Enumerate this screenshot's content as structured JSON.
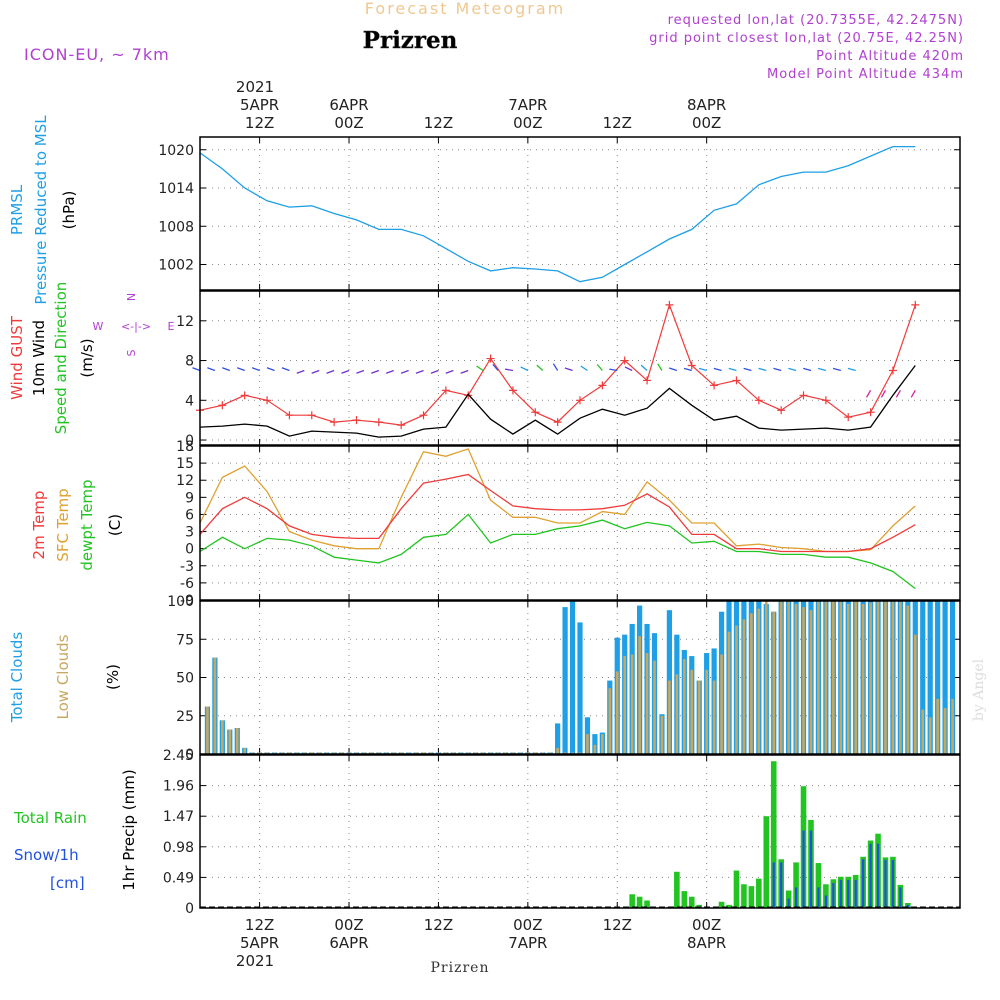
{
  "header": {
    "title": "Forecast Meteogram",
    "location": "Prizren",
    "model": "ICON-EU, ~ 7km",
    "requested": "requested lon,lat (20.7355E, 42.2475N)",
    "gridpoint": "grid point closest lon,lat (20.75E, 42.25N)",
    "point_alt": "Point Altitude 420m",
    "model_alt": "Model Point Altitude 434m",
    "footer": "Prizren",
    "watermark": "by Angel",
    "year": "2021"
  },
  "time_axis": {
    "ticks": [
      {
        "hour": "12Z",
        "day": "5APR"
      },
      {
        "hour": "00Z",
        "day": "6APR"
      },
      {
        "hour": "12Z",
        "day": ""
      },
      {
        "hour": "00Z",
        "day": "7APR"
      },
      {
        "hour": "12Z",
        "day": ""
      },
      {
        "hour": "00Z",
        "day": "8APR"
      }
    ]
  },
  "colors": {
    "pressure": "#1e9fe6",
    "gust": "#ef3b3b",
    "wind": "#000000",
    "winddir": "#22c422",
    "temp2m": "#ef3b3b",
    "sfc": "#e0a030",
    "dewpt": "#22c422",
    "total_clouds": "#1e9fe6",
    "low_clouds": "#c8a860",
    "rain": "#22c422",
    "snow": "#2050e0",
    "compass": "#b040d0"
  },
  "chart_data": [
    {
      "type": "line",
      "panel": "pressure",
      "ylabel_lines": [
        "PRMSL",
        "Pressure Reduced to MSL"
      ],
      "unit": "(hPa)",
      "ylim": [
        998,
        1022
      ],
      "yticks": [
        1002,
        1008,
        1014,
        1020
      ],
      "x_hours": [
        0,
        3,
        6,
        9,
        12,
        15,
        18,
        21,
        24,
        27,
        30,
        33,
        36,
        39,
        42,
        45,
        48,
        51,
        54,
        57,
        60,
        63,
        66,
        69,
        72,
        75,
        78,
        81,
        84,
        87,
        90,
        93,
        96
      ],
      "series": [
        {
          "values": [
            1019.5,
            1017,
            1014,
            1012,
            1011,
            1011.2,
            1010,
            1009,
            1007.5,
            1007.5,
            1006.5,
            1004.5,
            1002.5,
            1001,
            1001.5,
            1001.3,
            1001,
            999.3,
            1000,
            1002,
            1004,
            1006,
            1007.5,
            1010.5,
            1011.5,
            1014.5,
            1015.8,
            1016.5,
            1016.5,
            1017.5,
            1019,
            1020.5,
            1020.5
          ]
        }
      ]
    },
    {
      "type": "line",
      "panel": "wind",
      "ylabel_lines": [
        "Wind GUST",
        "10m Wind",
        "Speed and Direction"
      ],
      "unit": "(m/s)",
      "compass": {
        "n": "N",
        "s": "S",
        "w": "W",
        "e": "E",
        "arrows": "<-|->"
      },
      "ylim": [
        -0.5,
        15
      ],
      "yticks": [
        0,
        4,
        8,
        12
      ],
      "x_hours": [
        0,
        3,
        6,
        9,
        12,
        15,
        18,
        21,
        24,
        27,
        30,
        33,
        36,
        39,
        42,
        45,
        48,
        51,
        54,
        57,
        60,
        63,
        66,
        69,
        72,
        75,
        78,
        81,
        84,
        87,
        90,
        93,
        96
      ],
      "series": [
        {
          "name": "Wind GUST",
          "values": [
            3,
            3.5,
            4.5,
            4,
            2.5,
            2.5,
            1.8,
            2,
            1.8,
            1.5,
            2.5,
            5,
            4.5,
            8.2,
            5,
            2.8,
            1.8,
            4,
            5.5,
            8,
            6,
            13.6,
            7.5,
            5.5,
            6,
            4,
            3,
            4.5,
            4,
            2.3,
            2.8,
            7,
            13.6
          ]
        },
        {
          "name": "10m Wind",
          "values": [
            1.3,
            1.4,
            1.6,
            1.4,
            0.4,
            0.9,
            0.8,
            0.7,
            0.3,
            0.4,
            1.1,
            1.3,
            4.6,
            2.1,
            0.6,
            2,
            0.6,
            2.2,
            3.1,
            2.5,
            3.2,
            5.2,
            3.5,
            2,
            2.4,
            1.2,
            1,
            1.1,
            1.2,
            1,
            1.3,
            4.5,
            7.5
          ]
        }
      ]
    },
    {
      "type": "line",
      "panel": "temperature",
      "ylabel_lines": [
        "2m Temp",
        "SFC Temp",
        "dewpt Temp"
      ],
      "unit": "(C)",
      "ylim": [
        -9,
        18
      ],
      "yticks": [
        -9,
        -6,
        -3,
        0,
        3,
        6,
        9,
        12,
        15,
        18
      ],
      "x_hours": [
        0,
        3,
        6,
        9,
        12,
        15,
        18,
        21,
        24,
        27,
        30,
        33,
        36,
        39,
        42,
        45,
        48,
        51,
        54,
        57,
        60,
        63,
        66,
        69,
        72,
        75,
        78,
        81,
        84,
        87,
        90,
        93,
        96
      ],
      "series": [
        {
          "name": "2m Temp",
          "values": [
            2.5,
            7,
            9,
            7,
            4,
            2.5,
            2,
            1.8,
            1.8,
            7,
            11.5,
            12.2,
            13,
            10.2,
            7.5,
            7,
            6.8,
            6.8,
            7,
            7.6,
            9.6,
            7.3,
            2.5,
            2.5,
            0,
            0,
            -0.5,
            -0.5,
            -0.5,
            -0.5,
            0,
            2,
            4.2
          ]
        },
        {
          "name": "SFC Temp",
          "values": [
            4.5,
            12.5,
            14.5,
            10,
            3,
            1.5,
            0.5,
            0,
            0,
            9,
            17,
            16.2,
            17.5,
            8.5,
            5.5,
            5.5,
            4.5,
            4.5,
            6.5,
            6,
            11.7,
            8.5,
            4.5,
            4.5,
            0.5,
            0.8,
            0.2,
            0,
            -0.5,
            -0.5,
            -0.2,
            4,
            7.5
          ]
        },
        {
          "name": "dewpt Temp",
          "values": [
            -0.5,
            2,
            0,
            1.8,
            1.5,
            0.5,
            -1.5,
            -2,
            -2.5,
            -1,
            2,
            2.5,
            6,
            1,
            2.5,
            2.5,
            3.5,
            4,
            5,
            3.5,
            4.6,
            4,
            1,
            1.3,
            -0.5,
            -0.5,
            -1,
            -1,
            -1.5,
            -1.5,
            -2.5,
            -4,
            -7
          ]
        }
      ]
    },
    {
      "type": "bar",
      "panel": "clouds",
      "ylabel_lines": [
        "Total Clouds",
        "Low Clouds"
      ],
      "unit": "(%)",
      "ylim": [
        0,
        100
      ],
      "yticks": [
        0,
        25,
        50,
        75,
        100
      ],
      "bar_start_hour": 0,
      "bar_step_hours": 1,
      "series": [
        {
          "name": "Total Clouds",
          "values": [
            13,
            31,
            63,
            22,
            16,
            17,
            4,
            1,
            1,
            1,
            1,
            1,
            1,
            1,
            1,
            1,
            1,
            1,
            1,
            1,
            1,
            1,
            1,
            1,
            1,
            1,
            1,
            1,
            1,
            1,
            1,
            1,
            1,
            1,
            1,
            1,
            1,
            1,
            1,
            1,
            1,
            1,
            1,
            1,
            1,
            1,
            1,
            1,
            20,
            96,
            100,
            86,
            24,
            13,
            14,
            48,
            76,
            78,
            85,
            97,
            85,
            79,
            26,
            94,
            78,
            68,
            64,
            48,
            66,
            69,
            93,
            100,
            100,
            100,
            100,
            100,
            98,
            93,
            100,
            100,
            100,
            100,
            100,
            100,
            100,
            100,
            100,
            100,
            100,
            100,
            100,
            100,
            100,
            100,
            100,
            100,
            100,
            100,
            100,
            100,
            100,
            100,
            100
          ]
        },
        {
          "name": "Low Clouds",
          "values": [
            13,
            31,
            63,
            22,
            16,
            17,
            4,
            1,
            1,
            1,
            1,
            1,
            1,
            1,
            1,
            1,
            1,
            1,
            1,
            1,
            1,
            1,
            1,
            1,
            1,
            1,
            1,
            1,
            1,
            1,
            1,
            1,
            1,
            1,
            1,
            1,
            1,
            1,
            1,
            1,
            1,
            1,
            1,
            1,
            1,
            1,
            1,
            1,
            4,
            1,
            1,
            1,
            13,
            6,
            13,
            43,
            54,
            64,
            65,
            77,
            66,
            61,
            25,
            48,
            52,
            62,
            55,
            48,
            55,
            48,
            65,
            80,
            84,
            88,
            92,
            95,
            100,
            93,
            100,
            100,
            98,
            96,
            94,
            100,
            100,
            100,
            100,
            98,
            100,
            98,
            99,
            100,
            100,
            100,
            100,
            97,
            78,
            29,
            24,
            36,
            30,
            36,
            37
          ]
        }
      ]
    },
    {
      "type": "bar",
      "panel": "precip",
      "ylabel_lines": [
        "Total Rain",
        "Snow/1h",
        "[cm]"
      ],
      "unit": "1hr Precip (mm)",
      "ylim": [
        0,
        2.45
      ],
      "yticks": [
        0,
        0.49,
        0.98,
        1.47,
        1.96,
        2.45
      ],
      "bar_start_hour": 0,
      "bar_step_hours": 1,
      "series": [
        {
          "name": "Total Rain",
          "values": [
            0,
            0,
            0,
            0,
            0,
            0,
            0,
            0,
            0,
            0,
            0,
            0,
            0,
            0,
            0,
            0,
            0,
            0,
            0,
            0,
            0,
            0,
            0,
            0,
            0,
            0,
            0,
            0,
            0,
            0,
            0,
            0,
            0,
            0,
            0,
            0,
            0,
            0,
            0,
            0,
            0,
            0,
            0,
            0,
            0,
            0,
            0,
            0,
            0,
            0,
            0,
            0,
            0,
            0,
            0,
            0,
            0,
            0,
            0.22,
            0.18,
            0.12,
            0,
            0,
            0.02,
            0.58,
            0.27,
            0.18,
            0.05,
            0,
            0,
            0.1,
            0.05,
            0.6,
            0.38,
            0.35,
            0.47,
            1.47,
            2.35,
            0.78,
            0.28,
            0.73,
            1.95,
            1.41,
            0.72,
            0.38,
            0.46,
            0.5,
            0.5,
            0.53,
            0.82,
            1.08,
            1.19,
            0.81,
            0.82,
            0.37,
            0.08,
            0,
            0
          ]
        },
        {
          "name": "Snow/1h",
          "values": [
            0,
            0,
            0,
            0,
            0,
            0,
            0,
            0,
            0,
            0,
            0,
            0,
            0,
            0,
            0,
            0,
            0,
            0,
            0,
            0,
            0,
            0,
            0,
            0,
            0,
            0,
            0,
            0,
            0,
            0,
            0,
            0,
            0,
            0,
            0,
            0,
            0,
            0,
            0,
            0,
            0,
            0,
            0,
            0,
            0,
            0,
            0,
            0,
            0,
            0,
            0,
            0,
            0,
            0,
            0,
            0,
            0,
            0,
            0,
            0,
            0,
            0,
            0,
            0,
            0,
            0,
            0,
            0,
            0,
            0,
            0,
            0,
            0,
            0,
            0,
            0,
            0,
            0.73,
            0.73,
            0.15,
            0.33,
            1.24,
            1.24,
            0.33,
            0.2,
            0.4,
            0.45,
            0.45,
            0.45,
            0.78,
            1.03,
            1.03,
            0.77,
            0.77,
            0.33,
            0.05,
            0,
            0
          ]
        }
      ]
    }
  ]
}
